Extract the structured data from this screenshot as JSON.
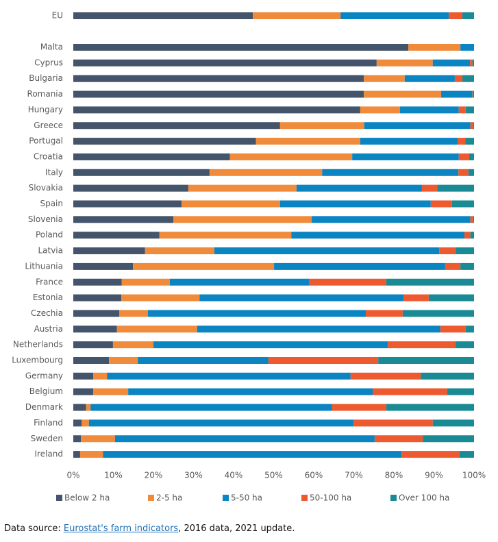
{
  "chart_data": {
    "type": "stacked-barh",
    "categories": [
      "EU",
      "Malta",
      "Cyprus",
      "Bulgaria",
      "Romania",
      "Hungary",
      "Greece",
      "Portugal",
      "Croatia",
      "Italy",
      "Slovakia",
      "Spain",
      "Slovenia",
      "Poland",
      "Latvia",
      "Lithuania",
      "France",
      "Estonia",
      "Czechia",
      "Austria",
      "Netherlands",
      "Luxembourg",
      "Germany",
      "Belgium",
      "Denmark",
      "Finland",
      "Sweden",
      "Ireland"
    ],
    "series": [
      {
        "name": "Below 2 ha",
        "color": "#44546a",
        "values": [
          44.8,
          83.6,
          75.7,
          72.5,
          72.5,
          71.6,
          51.6,
          45.6,
          39.1,
          34.0,
          28.7,
          27.0,
          25.0,
          21.5,
          17.9,
          14.9,
          12.1,
          12.0,
          11.5,
          10.9,
          9.9,
          8.9,
          5.0,
          5.0,
          3.2,
          2.1,
          1.9,
          1.7
        ]
      },
      {
        "name": "2-5 ha",
        "color": "#ef8b3b",
        "values": [
          21.9,
          13.0,
          14.0,
          10.2,
          19.3,
          9.9,
          21.0,
          26.0,
          30.5,
          28.1,
          27.0,
          24.6,
          34.5,
          32.9,
          17.3,
          35.2,
          12.0,
          19.5,
          7.1,
          20.0,
          10.1,
          7.2,
          3.4,
          8.7,
          1.1,
          1.8,
          8.5,
          5.7
        ]
      },
      {
        "name": "5-50 ha",
        "color": "#0b84c2",
        "values": [
          27.0,
          3.4,
          9.3,
          12.5,
          7.7,
          14.7,
          26.5,
          24.3,
          26.6,
          34.0,
          31.3,
          37.6,
          39.6,
          43.2,
          56.1,
          42.7,
          34.7,
          50.9,
          54.4,
          60.7,
          58.5,
          32.6,
          60.8,
          61.0,
          60.3,
          66.0,
          64.8,
          74.5
        ]
      },
      {
        "name": "50-100 ha",
        "color": "#ee5a2f",
        "values": [
          3.4,
          0,
          0.6,
          1.9,
          0.1,
          1.7,
          0.7,
          1.9,
          2.6,
          2.5,
          3.8,
          5.3,
          0.7,
          1.5,
          4.1,
          3.8,
          19.3,
          6.3,
          9.2,
          6.3,
          16.9,
          27.4,
          17.5,
          18.6,
          13.5,
          19.8,
          12.0,
          14.5
        ]
      },
      {
        "name": "Over 100 ha",
        "color": "#1a8b95",
        "values": [
          2.9,
          0,
          0.4,
          2.9,
          0.4,
          2.1,
          0.2,
          2.2,
          1.2,
          1.4,
          9.2,
          5.5,
          0.2,
          0.9,
          4.6,
          3.4,
          21.9,
          11.3,
          17.8,
          2.1,
          4.6,
          23.9,
          13.3,
          6.7,
          21.9,
          10.3,
          12.8,
          3.6
        ]
      }
    ],
    "xlim": [
      0,
      100
    ],
    "xticks": [
      {
        "value": 0,
        "label": "0%"
      },
      {
        "value": 10,
        "label": "10%"
      },
      {
        "value": 20,
        "label": "20%"
      },
      {
        "value": 30,
        "label": "30%"
      },
      {
        "value": 40,
        "label": "40%"
      },
      {
        "value": 50,
        "label": "50%"
      },
      {
        "value": 60,
        "label": "60%"
      },
      {
        "value": 70,
        "label": "70%"
      },
      {
        "value": 80,
        "label": "80%"
      },
      {
        "value": 90,
        "label": "90%"
      },
      {
        "value": 100,
        "label": "100%"
      }
    ],
    "grid": false,
    "legend": "bottom"
  },
  "source": {
    "prefix": "Data source: ",
    "link": "Eurostat's farm indicators",
    "suffix": ", 2016 data, 2021 update."
  }
}
